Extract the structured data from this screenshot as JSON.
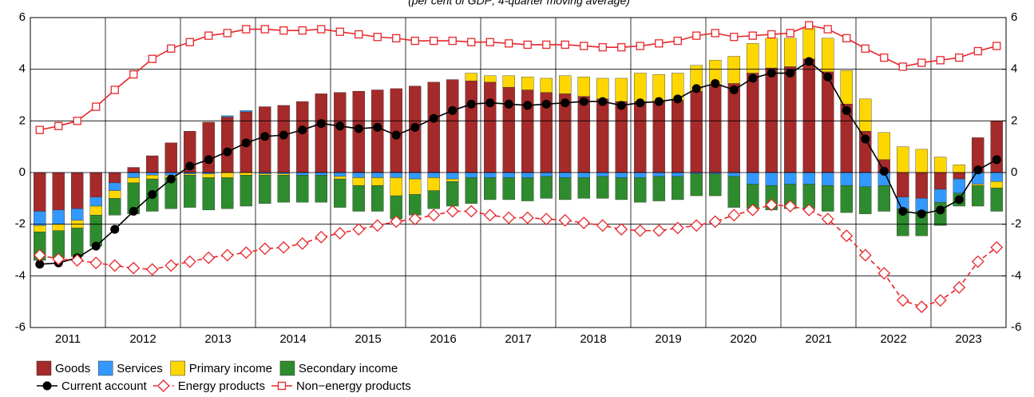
{
  "chart_data": {
    "type": "bar",
    "subtitle": "(per cent of GDP; 4-quarter moving average)",
    "x_labels": [
      "2011",
      "2012",
      "2013",
      "2014",
      "2015",
      "2016",
      "2017",
      "2018",
      "2019",
      "2020",
      "2021",
      "2022",
      "2023"
    ],
    "ylim": [
      -6,
      6
    ],
    "yticks": [
      -6,
      -4,
      -2,
      0,
      2,
      4,
      6
    ],
    "y2lim": [
      -6,
      6
    ],
    "y2ticks": [
      -6,
      -4,
      -2,
      0,
      2,
      4,
      6
    ],
    "grid": true,
    "series": [
      {
        "name": "Goods",
        "color": "#a52a2a",
        "values": [
          -1.5,
          -1.45,
          -1.4,
          -0.95,
          -0.4,
          0.2,
          0.65,
          1.15,
          1.6,
          1.95,
          2.15,
          2.35,
          2.55,
          2.6,
          2.75,
          3.05,
          3.1,
          3.15,
          3.2,
          3.25,
          3.35,
          3.5,
          3.6,
          3.55,
          3.5,
          3.3,
          3.2,
          3.1,
          3.05,
          2.95,
          2.85,
          2.75,
          2.75,
          2.75,
          2.8,
          3.15,
          3.4,
          3.45,
          3.85,
          4.05,
          4.1,
          4.4,
          3.9,
          2.65,
          1.6,
          0.5,
          -0.95,
          -1.0,
          -0.65,
          -0.25,
          1.35,
          2.0
        ]
      },
      {
        "name": "Services",
        "color": "#3399ff",
        "values": [
          -0.55,
          -0.55,
          -0.45,
          -0.35,
          -0.3,
          -0.2,
          -0.1,
          -0.1,
          -0.05,
          -0.05,
          0.05,
          0.05,
          -0.05,
          -0.05,
          -0.1,
          -0.1,
          -0.15,
          -0.2,
          -0.2,
          -0.2,
          -0.25,
          -0.2,
          -0.25,
          -0.2,
          -0.2,
          -0.2,
          -0.2,
          -0.15,
          -0.2,
          -0.2,
          -0.15,
          -0.2,
          -0.2,
          -0.15,
          -0.15,
          -0.05,
          -0.05,
          -0.15,
          -0.45,
          -0.5,
          -0.45,
          -0.45,
          -0.5,
          -0.5,
          -0.55,
          -0.5,
          -0.45,
          -0.5,
          -0.5,
          -0.55,
          -0.45,
          -0.35
        ]
      },
      {
        "name": "Primary income",
        "color": "#ffd700",
        "values": [
          -0.25,
          -0.25,
          -0.3,
          -0.35,
          -0.3,
          -0.2,
          -0.15,
          -0.1,
          -0.05,
          -0.15,
          -0.2,
          -0.1,
          -0.05,
          -0.05,
          0,
          0,
          -0.1,
          -0.3,
          -0.3,
          -0.7,
          -0.6,
          -0.5,
          -0.1,
          0.3,
          0.25,
          0.45,
          0.5,
          0.55,
          0.7,
          0.75,
          0.8,
          0.9,
          1.1,
          1.05,
          1.05,
          1.0,
          0.95,
          1.05,
          1.15,
          1.15,
          1.1,
          1.2,
          1.3,
          1.3,
          1.25,
          1.05,
          1.0,
          0.9,
          0.6,
          0.3,
          -0.05,
          -0.25
        ]
      },
      {
        "name": "Secondary income",
        "color": "#2e8b2e",
        "values": [
          -1.1,
          -1.05,
          -1.1,
          -1.2,
          -0.65,
          -1.2,
          -1.25,
          -1.2,
          -1.25,
          -1.25,
          -1.2,
          -1.2,
          -1.1,
          -1.05,
          -1.05,
          -1.05,
          -1.1,
          -1.0,
          -1.0,
          -0.9,
          -0.8,
          -0.7,
          -0.95,
          -1.0,
          -0.85,
          -0.85,
          -0.9,
          -0.85,
          -0.85,
          -0.8,
          -0.85,
          -0.85,
          -0.95,
          -0.95,
          -0.9,
          -0.85,
          -0.85,
          -1.2,
          -0.95,
          -0.95,
          -0.95,
          -0.95,
          -1.0,
          -1.05,
          -1.05,
          -1.0,
          -1.05,
          -0.95,
          -0.9,
          -0.5,
          -0.8,
          -0.9
        ]
      }
    ],
    "lines": [
      {
        "name": "Current account",
        "color": "#000000",
        "marker": "dot",
        "dashed": false,
        "values": [
          -3.55,
          -3.5,
          -3.3,
          -2.85,
          -2.2,
          -1.5,
          -0.85,
          -0.25,
          0.25,
          0.5,
          0.8,
          1.15,
          1.4,
          1.45,
          1.65,
          1.9,
          1.8,
          1.7,
          1.75,
          1.45,
          1.75,
          2.1,
          2.4,
          2.65,
          2.7,
          2.65,
          2.6,
          2.65,
          2.7,
          2.75,
          2.75,
          2.6,
          2.7,
          2.75,
          2.85,
          3.25,
          3.45,
          3.2,
          3.65,
          3.85,
          3.85,
          4.3,
          3.7,
          2.4,
          1.3,
          0.05,
          -1.5,
          -1.6,
          -1.45,
          -1.05,
          0.1,
          0.5
        ]
      },
      {
        "name": "Energy products",
        "color": "#e8262b",
        "marker": "diamond",
        "dashed": true,
        "values": [
          -3.2,
          -3.35,
          -3.4,
          -3.5,
          -3.6,
          -3.7,
          -3.75,
          -3.6,
          -3.45,
          -3.3,
          -3.2,
          -3.1,
          -2.95,
          -2.9,
          -2.75,
          -2.5,
          -2.35,
          -2.2,
          -2.05,
          -1.9,
          -1.8,
          -1.65,
          -1.5,
          -1.5,
          -1.65,
          -1.75,
          -1.75,
          -1.8,
          -1.85,
          -1.95,
          -2.05,
          -2.2,
          -2.25,
          -2.25,
          -2.15,
          -2.05,
          -1.9,
          -1.65,
          -1.45,
          -1.25,
          -1.3,
          -1.45,
          -1.8,
          -2.45,
          -3.2,
          -3.9,
          -4.95,
          -5.2,
          -4.95,
          -4.45,
          -3.45,
          -2.9
        ]
      },
      {
        "name": "Non−energy products",
        "color": "#e8262b",
        "marker": "square",
        "dashed": false,
        "values": [
          1.65,
          1.8,
          2.0,
          2.55,
          3.2,
          3.8,
          4.4,
          4.8,
          5.05,
          5.3,
          5.4,
          5.55,
          5.55,
          5.5,
          5.5,
          5.55,
          5.45,
          5.35,
          5.25,
          5.2,
          5.1,
          5.1,
          5.1,
          5.05,
          5.05,
          5.0,
          4.95,
          4.95,
          4.95,
          4.9,
          4.85,
          4.85,
          4.9,
          5.0,
          5.1,
          5.3,
          5.4,
          5.25,
          5.3,
          5.35,
          5.4,
          5.7,
          5.55,
          5.2,
          4.8,
          4.45,
          4.1,
          4.25,
          4.35,
          4.45,
          4.7,
          4.9
        ]
      }
    ]
  }
}
